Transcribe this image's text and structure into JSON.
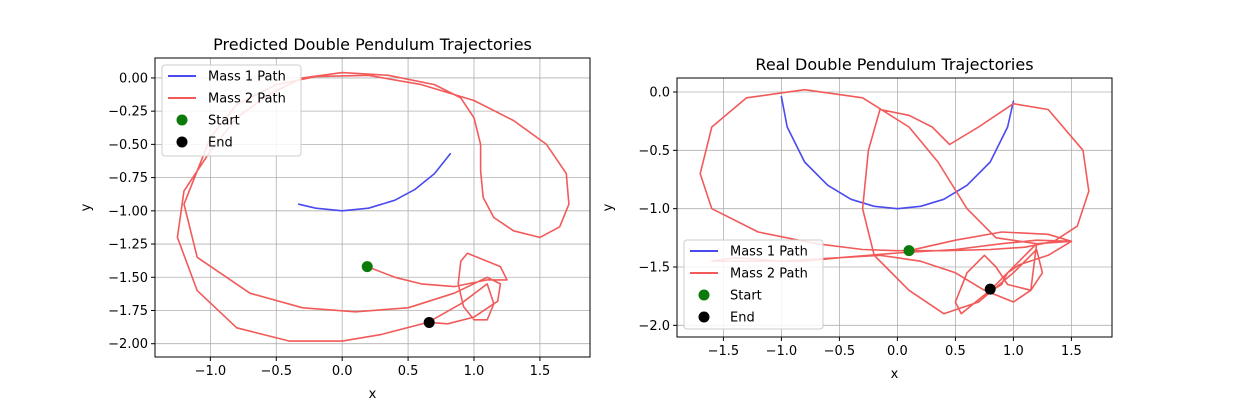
{
  "colors": {
    "mass1": "#4a4af0",
    "mass2": "#f25a5a",
    "start": "#0a7a0a",
    "end": "#000000",
    "grid": "#b0b0b0"
  },
  "chart_data": [
    {
      "type": "line",
      "title": "Predicted Double Pendulum Trajectories",
      "xlabel": "x",
      "ylabel": "y",
      "xlim": [
        -1.42,
        1.88
      ],
      "ylim": [
        -2.1,
        0.15
      ],
      "xticks": [
        -1.0,
        -0.5,
        0.0,
        0.5,
        1.0,
        1.5
      ],
      "xtick_labels": [
        "−1.0",
        "−0.5",
        "0.0",
        "0.5",
        "1.0",
        "1.5"
      ],
      "yticks": [
        0.0,
        -0.25,
        -0.5,
        -0.75,
        -1.0,
        -1.25,
        -1.5,
        -1.75,
        -2.0
      ],
      "ytick_labels": [
        "0.00",
        "−0.25",
        "−0.50",
        "−0.75",
        "−1.00",
        "−1.25",
        "−1.50",
        "−1.75",
        "−2.00"
      ],
      "grid": true,
      "legend_position": "upper-left",
      "legend": [
        "Mass 1 Path",
        "Mass 2 Path",
        "Start",
        "End"
      ],
      "series": [
        {
          "name": "Mass 1 Path",
          "x": [
            -0.33,
            -0.2,
            0.0,
            0.2,
            0.4,
            0.55,
            0.7,
            0.82
          ],
          "y": [
            -0.95,
            -0.98,
            -1.0,
            -0.98,
            -0.92,
            -0.84,
            -0.72,
            -0.57
          ]
        },
        {
          "name": "Mass 2 Path",
          "x": [
            0.19,
            0.4,
            0.6,
            0.85,
            1.1,
            1.25,
            1.2,
            0.95,
            0.9,
            0.88,
            0.92,
            1.0,
            1.1,
            1.15,
            1.1,
            0.9,
            0.65,
            0.3,
            0.0,
            -0.4,
            -0.8,
            -1.1,
            -1.25,
            -1.2,
            -1.0,
            -0.8,
            -0.55,
            -0.3,
            0.0,
            0.35,
            0.7,
            0.9,
            1.0,
            1.05,
            1.05,
            1.07,
            1.15,
            1.3,
            1.5,
            1.65,
            1.72,
            1.7,
            1.55,
            1.3,
            1.0,
            0.6,
            0.2,
            -0.2,
            -0.5,
            -0.8,
            -1.0,
            -1.2,
            -1.1,
            -0.7,
            -0.3,
            0.1,
            0.5,
            0.85,
            1.1,
            1.2,
            1.18,
            1.0,
            0.8,
            0.66
          ],
          "y": [
            -1.42,
            -1.5,
            -1.55,
            -1.57,
            -1.52,
            -1.52,
            -1.42,
            -1.32,
            -1.38,
            -1.55,
            -1.72,
            -1.82,
            -1.82,
            -1.7,
            -1.55,
            -1.7,
            -1.84,
            -1.93,
            -1.98,
            -1.98,
            -1.88,
            -1.6,
            -1.2,
            -0.85,
            -0.55,
            -0.3,
            -0.12,
            0.0,
            0.04,
            0.02,
            -0.05,
            -0.15,
            -0.3,
            -0.5,
            -0.7,
            -0.9,
            -1.05,
            -1.15,
            -1.2,
            -1.12,
            -0.95,
            -0.72,
            -0.5,
            -0.32,
            -0.17,
            -0.05,
            0.02,
            0.01,
            -0.05,
            -0.2,
            -0.45,
            -0.95,
            -1.35,
            -1.62,
            -1.73,
            -1.76,
            -1.73,
            -1.62,
            -1.5,
            -1.55,
            -1.68,
            -1.8,
            -1.85,
            -1.84
          ]
        }
      ],
      "start": {
        "name": "Start",
        "x": 0.19,
        "y": -1.42
      },
      "end": {
        "name": "End",
        "x": 0.66,
        "y": -1.84
      }
    },
    {
      "type": "line",
      "title": "Real Double Pendulum Trajectories",
      "xlabel": "x",
      "ylabel": "y",
      "xlim": [
        -1.9,
        1.85
      ],
      "ylim": [
        -2.1,
        0.12
      ],
      "xticks": [
        -1.5,
        -1.0,
        -0.5,
        0.0,
        0.5,
        1.0,
        1.5
      ],
      "xtick_labels": [
        "−1.5",
        "−1.0",
        "−0.5",
        "0.0",
        "0.5",
        "1.0",
        "1.5"
      ],
      "yticks": [
        0.0,
        -0.5,
        -1.0,
        -1.5,
        -2.0
      ],
      "ytick_labels": [
        "0.0",
        "−0.5",
        "−1.0",
        "−1.5",
        "−2.0"
      ],
      "grid": true,
      "legend_position": "lower-left",
      "legend": [
        "Mass 1 Path",
        "Mass 2 Path",
        "Start",
        "End"
      ],
      "series": [
        {
          "name": "Mass 1 Path",
          "x": [
            -1.0,
            -0.95,
            -0.8,
            -0.6,
            -0.4,
            -0.2,
            0.0,
            0.2,
            0.4,
            0.6,
            0.8,
            0.95,
            1.0
          ],
          "y": [
            -0.04,
            -0.3,
            -0.6,
            -0.8,
            -0.92,
            -0.98,
            -1.0,
            -0.98,
            -0.92,
            -0.8,
            -0.6,
            -0.3,
            -0.08
          ]
        },
        {
          "name": "Mass 2 Path",
          "x": [
            0.1,
            0.5,
            0.9,
            1.3,
            1.5,
            1.2,
            0.85,
            0.6,
            0.35,
            0.1,
            -0.3,
            -0.8,
            -1.3,
            -1.6,
            -1.7,
            -1.6,
            -1.2,
            -0.7,
            -0.3,
            0.0,
            0.4,
            0.8,
            1.1,
            1.35,
            1.55,
            1.65,
            1.6,
            1.3,
            1.0,
            0.7,
            0.45,
            0.3,
            0.1,
            -0.15,
            -0.25,
            -0.3,
            -0.2,
            0.1,
            0.4,
            0.7,
            1.0,
            1.2,
            1.25,
            1.15,
            0.95,
            0.85,
            0.75,
            0.6,
            0.5,
            0.55,
            0.8,
            1.05,
            1.2,
            1.15,
            1.0,
            0.75,
            0.5,
            0.2,
            -0.15,
            -0.5,
            -0.8,
            -1.0,
            -1.4,
            -1.6,
            -1.0,
            -0.5,
            0.0,
            0.5,
            0.9,
            1.2,
            1.5,
            1.3,
            1.05,
            0.95,
            0.92,
            0.9,
            0.85,
            0.8
          ],
          "y": [
            -1.36,
            -1.27,
            -1.2,
            -1.22,
            -1.28,
            -1.3,
            -1.25,
            -1.0,
            -0.6,
            -0.3,
            -0.05,
            0.02,
            -0.05,
            -0.3,
            -0.7,
            -1.0,
            -1.2,
            -1.3,
            -1.35,
            -1.36,
            -1.36,
            -1.35,
            -1.33,
            -1.28,
            -1.15,
            -0.85,
            -0.5,
            -0.15,
            -0.1,
            -0.3,
            -0.45,
            -0.3,
            -0.2,
            -0.15,
            -0.5,
            -1.0,
            -1.4,
            -1.7,
            -1.9,
            -1.8,
            -1.55,
            -1.35,
            -1.55,
            -1.7,
            -1.65,
            -1.5,
            -1.4,
            -1.55,
            -1.8,
            -1.9,
            -1.7,
            -1.45,
            -1.3,
            -1.7,
            -1.8,
            -1.7,
            -1.55,
            -1.45,
            -1.4,
            -1.42,
            -1.45,
            -1.45,
            -1.42,
            -1.45,
            -1.45,
            -1.42,
            -1.38,
            -1.35,
            -1.3,
            -1.27,
            -1.28,
            -1.4,
            -1.48,
            -1.55,
            -1.6,
            -1.65,
            -1.68,
            -1.69
          ]
        }
      ],
      "start": {
        "name": "Start",
        "x": 0.1,
        "y": -1.36
      },
      "end": {
        "name": "End",
        "x": 0.8,
        "y": -1.69
      }
    }
  ]
}
